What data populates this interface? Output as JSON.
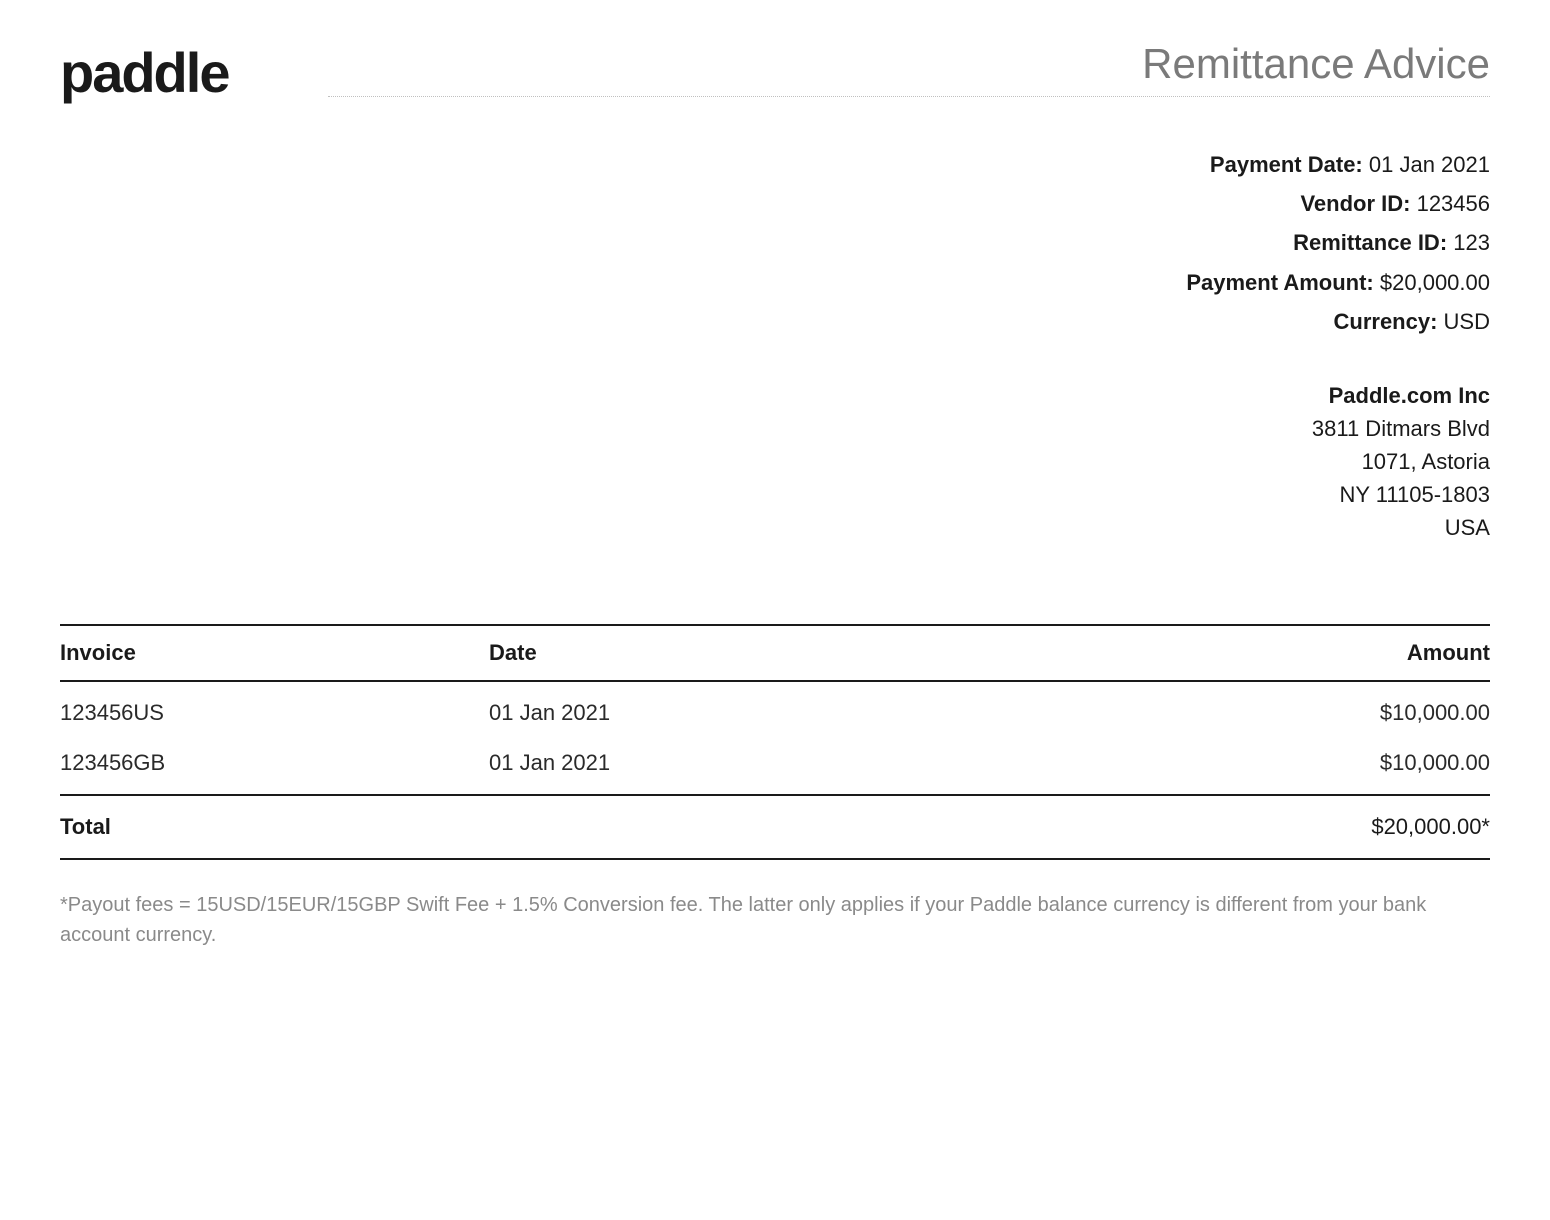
{
  "logo_text": "paddle",
  "doc_title": "Remittance Advice",
  "meta": {
    "payment_date_label": "Payment Date:",
    "payment_date_value": "01 Jan 2021",
    "vendor_id_label": "Vendor ID:",
    "vendor_id_value": "123456",
    "remittance_id_label": "Remittance ID:",
    "remittance_id_value": "123",
    "payment_amount_label": "Payment Amount:",
    "payment_amount_value": "$20,000.00",
    "currency_label": "Currency:",
    "currency_value": "USD"
  },
  "address": {
    "company": "Paddle.com Inc",
    "line1": "3811 Ditmars Blvd",
    "line2": "1071, Astoria",
    "line3": "NY 11105-1803",
    "line4": "USA"
  },
  "table": {
    "headers": {
      "invoice": "Invoice",
      "date": "Date",
      "amount": "Amount"
    },
    "rows": [
      {
        "invoice": "123456US",
        "date": "01 Jan 2021",
        "amount": "$10,000.00"
      },
      {
        "invoice": "123456GB",
        "date": "01 Jan 2021",
        "amount": "$10,000.00"
      }
    ],
    "total_label": "Total",
    "total_value": "$20,000.00*"
  },
  "footnote": "*Payout fees = 15USD/15EUR/15GBP Swift Fee + 1.5% Conversion fee. The latter only applies if your Paddle balance currency is different from your bank account currency.",
  "styling": {
    "background_color": "#ffffff",
    "text_color": "#1a1a1a",
    "muted_color": "#7a7a7a",
    "footnote_color": "#8a8a8a",
    "border_color": "#1a1a1a",
    "title_border": "#c0c0c0",
    "logo_fontsize": 56,
    "title_fontsize": 42,
    "body_fontsize": 22,
    "footnote_fontsize": 20,
    "table_border_width": 2
  }
}
